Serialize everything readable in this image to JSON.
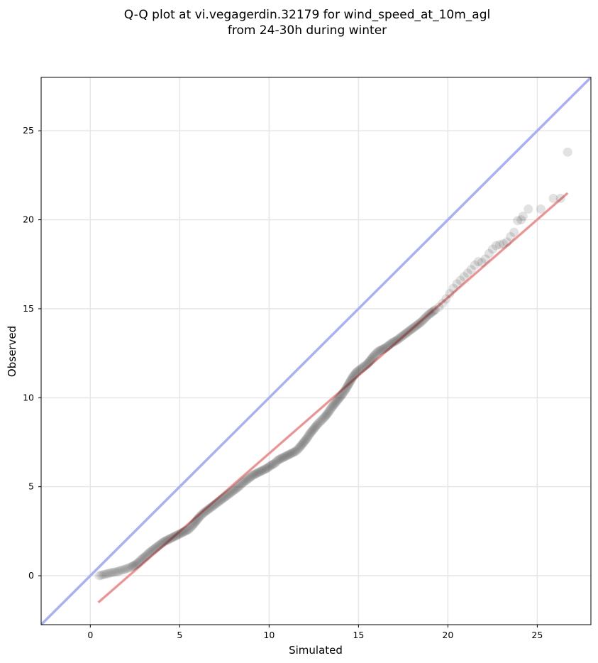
{
  "chart_data": {
    "type": "scatter",
    "title_lines": [
      "Q-Q plot at vi.vegagerdin.32179 for wind_speed_at_10m_agl",
      "from 24-30h during winter"
    ],
    "xlabel": "Simulated",
    "ylabel": "Observed",
    "xlim": [
      -2.75,
      28
    ],
    "ylim": [
      -2.75,
      28
    ],
    "xticks": [
      0,
      5,
      10,
      15,
      20,
      25
    ],
    "yticks": [
      0,
      5,
      10,
      15,
      20,
      25
    ],
    "grid": true,
    "identity_line": {
      "color": "#aab0f5"
    },
    "fit_line": {
      "x": [
        0.45,
        26.7
      ],
      "y": [
        -1.5,
        21.5
      ],
      "color": "#f4a6a6"
    },
    "quantiles": {
      "color": "#222222",
      "points": [
        [
          0.5,
          0.0
        ],
        [
          0.7,
          0.05
        ],
        [
          0.9,
          0.1
        ],
        [
          1.1,
          0.15
        ],
        [
          1.3,
          0.2
        ],
        [
          1.5,
          0.22
        ],
        [
          1.7,
          0.3
        ],
        [
          1.9,
          0.35
        ],
        [
          2.1,
          0.42
        ],
        [
          2.3,
          0.5
        ],
        [
          2.5,
          0.6
        ],
        [
          2.7,
          0.75
        ],
        [
          2.9,
          0.95
        ],
        [
          3.1,
          1.1
        ],
        [
          3.3,
          1.3
        ],
        [
          3.5,
          1.45
        ],
        [
          3.7,
          1.6
        ],
        [
          3.9,
          1.75
        ],
        [
          4.1,
          1.9
        ],
        [
          4.3,
          2.0
        ],
        [
          4.5,
          2.1
        ],
        [
          4.7,
          2.2
        ],
        [
          4.9,
          2.3
        ],
        [
          5.1,
          2.4
        ],
        [
          5.3,
          2.5
        ],
        [
          5.5,
          2.6
        ],
        [
          5.7,
          2.8
        ],
        [
          5.9,
          3.05
        ],
        [
          6.1,
          3.3
        ],
        [
          6.3,
          3.5
        ],
        [
          6.5,
          3.65
        ],
        [
          6.7,
          3.8
        ],
        [
          6.9,
          3.95
        ],
        [
          7.1,
          4.1
        ],
        [
          7.3,
          4.25
        ],
        [
          7.5,
          4.4
        ],
        [
          7.7,
          4.55
        ],
        [
          7.9,
          4.7
        ],
        [
          8.1,
          4.85
        ],
        [
          8.3,
          5.0
        ],
        [
          8.5,
          5.2
        ],
        [
          8.7,
          5.35
        ],
        [
          8.9,
          5.5
        ],
        [
          9.1,
          5.65
        ],
        [
          9.3,
          5.75
        ],
        [
          9.5,
          5.85
        ],
        [
          9.7,
          5.95
        ],
        [
          9.9,
          6.05
        ],
        [
          10.1,
          6.2
        ],
        [
          10.3,
          6.3
        ],
        [
          10.5,
          6.5
        ],
        [
          10.7,
          6.6
        ],
        [
          10.9,
          6.7
        ],
        [
          11.1,
          6.8
        ],
        [
          11.3,
          6.9
        ],
        [
          11.5,
          7.0
        ],
        [
          11.7,
          7.2
        ],
        [
          11.9,
          7.45
        ],
        [
          12.1,
          7.7
        ],
        [
          12.3,
          8.0
        ],
        [
          12.5,
          8.25
        ],
        [
          12.7,
          8.5
        ],
        [
          12.9,
          8.7
        ],
        [
          13.1,
          8.9
        ],
        [
          13.3,
          9.15
        ],
        [
          13.5,
          9.45
        ],
        [
          13.7,
          9.7
        ],
        [
          13.9,
          9.95
        ],
        [
          14.1,
          10.2
        ],
        [
          14.3,
          10.5
        ],
        [
          14.5,
          10.85
        ],
        [
          14.7,
          11.2
        ],
        [
          14.9,
          11.45
        ],
        [
          15.1,
          11.6
        ],
        [
          15.3,
          11.75
        ],
        [
          15.5,
          11.9
        ],
        [
          15.7,
          12.15
        ],
        [
          15.9,
          12.4
        ],
        [
          16.1,
          12.6
        ],
        [
          16.3,
          12.7
        ],
        [
          16.5,
          12.8
        ],
        [
          16.7,
          12.95
        ],
        [
          16.9,
          13.1
        ],
        [
          17.1,
          13.2
        ],
        [
          17.3,
          13.35
        ],
        [
          17.5,
          13.5
        ],
        [
          17.7,
          13.65
        ],
        [
          17.9,
          13.8
        ],
        [
          18.1,
          13.95
        ],
        [
          18.3,
          14.1
        ],
        [
          18.5,
          14.25
        ],
        [
          18.7,
          14.45
        ],
        [
          18.9,
          14.65
        ],
        [
          19.1,
          14.8
        ],
        [
          19.3,
          14.95
        ],
        [
          19.5,
          15.1
        ],
        [
          19.7,
          15.3
        ],
        [
          19.9,
          15.55
        ],
        [
          20.1,
          15.85
        ],
        [
          20.3,
          16.15
        ],
        [
          20.5,
          16.4
        ],
        [
          20.7,
          16.6
        ],
        [
          20.9,
          16.8
        ],
        [
          21.1,
          17.0
        ],
        [
          21.3,
          17.2
        ],
        [
          21.5,
          17.45
        ],
        [
          21.7,
          17.65
        ],
        [
          21.9,
          17.6
        ],
        [
          22.1,
          17.8
        ],
        [
          22.3,
          18.1
        ],
        [
          22.5,
          18.35
        ],
        [
          22.7,
          18.55
        ],
        [
          22.9,
          18.6
        ],
        [
          23.1,
          18.65
        ],
        [
          23.3,
          18.75
        ],
        [
          23.5,
          19.05
        ],
        [
          23.7,
          19.3
        ],
        [
          23.9,
          19.95
        ],
        [
          24.1,
          20.0
        ],
        [
          24.2,
          20.2
        ],
        [
          24.5,
          20.6
        ],
        [
          25.2,
          20.6
        ],
        [
          25.9,
          21.2
        ],
        [
          26.3,
          21.2
        ],
        [
          26.7,
          23.8
        ]
      ]
    }
  }
}
